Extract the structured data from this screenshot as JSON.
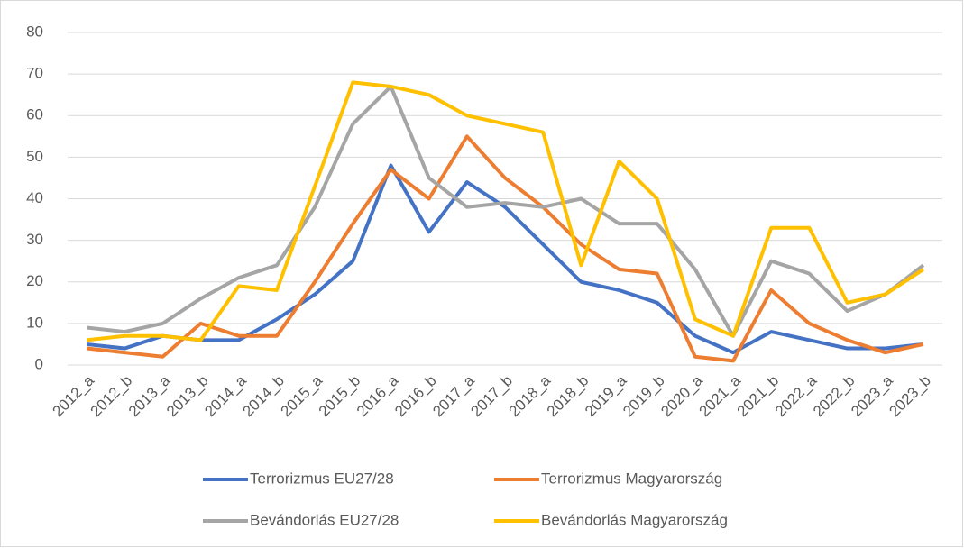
{
  "chart_data": {
    "type": "line",
    "categories": [
      "2012_a",
      "2012_b",
      "2013_a",
      "2013_b",
      "2014_a",
      "2014_b",
      "2015_a",
      "2015_b",
      "2016_a",
      "2016_b",
      "2017_a",
      "2017_b",
      "2018_a",
      "2018_b",
      "2019_a",
      "2019_b",
      "2020_a",
      "2021_a",
      "2021_b",
      "2022_a",
      "2022_b",
      "2023_a",
      "2023_b"
    ],
    "series": [
      {
        "name": "Terrorizmus EU27/28",
        "color": "#4472c4",
        "values": [
          5,
          4,
          7,
          6,
          6,
          11,
          17,
          25,
          48,
          32,
          44,
          38,
          29,
          20,
          18,
          15,
          7,
          3,
          8,
          6,
          4,
          4,
          5
        ]
      },
      {
        "name": "Terrorizmus Magyarország",
        "color": "#ed7d31",
        "values": [
          4,
          3,
          2,
          10,
          7,
          7,
          20,
          34,
          47,
          40,
          55,
          45,
          38,
          29,
          23,
          22,
          2,
          1,
          18,
          10,
          6,
          3,
          5
        ]
      },
      {
        "name": "Bevándorlás EU27/28",
        "color": "#a5a5a5",
        "values": [
          9,
          8,
          10,
          16,
          21,
          24,
          38,
          58,
          67,
          45,
          38,
          39,
          38,
          40,
          34,
          34,
          23,
          7,
          25,
          22,
          13,
          17,
          24
        ]
      },
      {
        "name": "Bevándorlás Magyarország",
        "color": "#ffc000",
        "values": [
          6,
          7,
          7,
          6,
          19,
          18,
          43,
          68,
          67,
          65,
          60,
          58,
          56,
          24,
          49,
          40,
          11,
          7,
          33,
          33,
          15,
          17,
          23
        ]
      }
    ],
    "ylim": [
      0,
      80
    ],
    "yticks": [
      0,
      10,
      20,
      30,
      40,
      50,
      60,
      70,
      80
    ],
    "grid": true,
    "legend": "bottom"
  }
}
